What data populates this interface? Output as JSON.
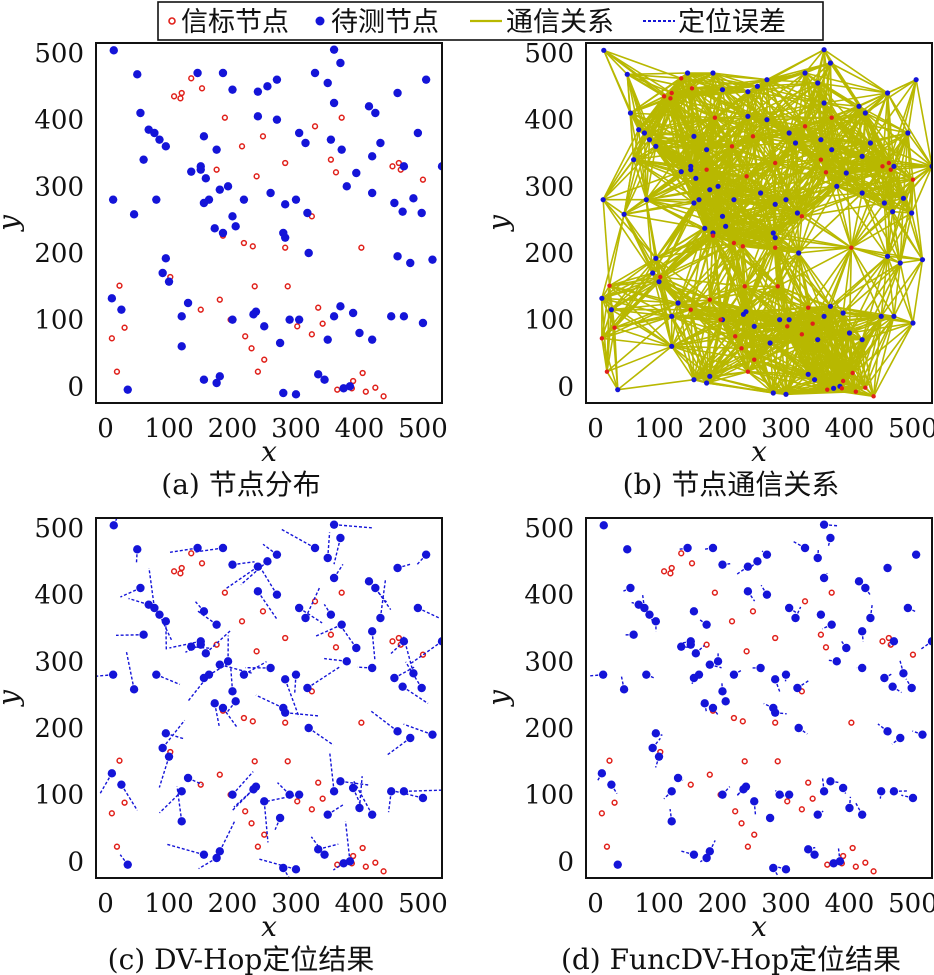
{
  "legend": {
    "entries": [
      {
        "label": "信标节点",
        "kind": "beacon"
      },
      {
        "label": "待测节点",
        "kind": "unknown"
      },
      {
        "label": "通信关系",
        "kind": "link"
      },
      {
        "label": "定位误差",
        "kind": "error"
      }
    ],
    "placement": "top-center"
  },
  "colors": {
    "beacon": "#e0201a",
    "unknown": "#1414d8",
    "link": "#b8b800",
    "error": "#1414d8",
    "frame": "#111111"
  },
  "chart_data": [
    {
      "panel": "a",
      "type": "scatter",
      "caption": "(a) 节点分布",
      "xlabel": "x",
      "ylabel": "y",
      "xlim": [
        -15,
        530
      ],
      "ylim": [
        -25,
        515
      ],
      "xticks": [
        0,
        100,
        200,
        300,
        400,
        500
      ],
      "yticks": [
        0,
        100,
        200,
        300,
        400,
        500
      ],
      "beacons": [
        [
          108,
          435
        ],
        [
          135,
          462
        ],
        [
          120,
          440
        ],
        [
          118,
          432
        ],
        [
          152,
          447
        ],
        [
          188,
          403
        ],
        [
          175,
          325
        ],
        [
          215,
          360
        ],
        [
          248,
          375
        ],
        [
          238,
          315
        ],
        [
          283,
          335
        ],
        [
          330,
          390
        ],
        [
          372,
          403
        ],
        [
          355,
          340
        ],
        [
          325,
          255
        ],
        [
          465,
          325
        ],
        [
          462,
          335
        ],
        [
          452,
          330
        ],
        [
          500,
          310
        ],
        [
          363,
          321
        ],
        [
          403,
          208
        ],
        [
          283,
          208
        ],
        [
          232,
          210
        ],
        [
          218,
          215
        ],
        [
          185,
          226
        ],
        [
          302,
          90
        ],
        [
          287,
          150
        ],
        [
          335,
          118
        ],
        [
          342,
          94
        ],
        [
          325,
          78
        ],
        [
          235,
          150
        ],
        [
          230,
          57
        ],
        [
          250,
          40
        ],
        [
          240,
          22
        ],
        [
          220,
          75
        ],
        [
          197,
          100
        ],
        [
          150,
          115
        ],
        [
          180,
          130
        ],
        [
          102,
          164
        ],
        [
          22,
          151
        ],
        [
          30,
          88
        ],
        [
          10,
          72
        ],
        [
          18,
          22
        ],
        [
          390,
          8
        ],
        [
          405,
          20
        ],
        [
          365,
          -5
        ],
        [
          388,
          -3
        ],
        [
          425,
          -2
        ],
        [
          410,
          -8
        ],
        [
          438,
          -15
        ]
      ],
      "unknowns": [
        [
          13,
          504
        ],
        [
          50,
          468
        ],
        [
          55,
          410
        ],
        [
          68,
          385
        ],
        [
          77,
          380
        ],
        [
          85,
          370
        ],
        [
          95,
          360
        ],
        [
          60,
          340
        ],
        [
          145,
          470
        ],
        [
          185,
          470
        ],
        [
          200,
          445
        ],
        [
          240,
          442
        ],
        [
          255,
          450
        ],
        [
          270,
          460
        ],
        [
          240,
          405
        ],
        [
          270,
          400
        ],
        [
          330,
          470
        ],
        [
          350,
          455
        ],
        [
          360,
          505
        ],
        [
          370,
          485
        ],
        [
          415,
          420
        ],
        [
          425,
          410
        ],
        [
          460,
          440
        ],
        [
          505,
          460
        ],
        [
          492,
          380
        ],
        [
          433,
          365
        ],
        [
          420,
          345
        ],
        [
          360,
          425
        ],
        [
          305,
          380
        ],
        [
          315,
          365
        ],
        [
          355,
          370
        ],
        [
          372,
          355
        ],
        [
          155,
          375
        ],
        [
          175,
          355
        ],
        [
          150,
          325
        ],
        [
          158,
          312
        ],
        [
          163,
          280
        ],
        [
          180,
          295
        ],
        [
          193,
          300
        ],
        [
          200,
          255
        ],
        [
          172,
          237
        ],
        [
          185,
          230
        ],
        [
          205,
          240
        ],
        [
          218,
          280
        ],
        [
          260,
          290
        ],
        [
          283,
          273
        ],
        [
          300,
          280
        ],
        [
          318,
          260
        ],
        [
          280,
          230
        ],
        [
          283,
          223
        ],
        [
          320,
          200
        ],
        [
          380,
          300
        ],
        [
          395,
          320
        ],
        [
          420,
          290
        ],
        [
          455,
          275
        ],
        [
          468,
          262
        ],
        [
          485,
          282
        ],
        [
          498,
          260
        ],
        [
          470,
          330
        ],
        [
          530,
          330
        ],
        [
          12,
          280
        ],
        [
          45,
          258
        ],
        [
          80,
          280
        ],
        [
          95,
          192
        ],
        [
          90,
          170
        ],
        [
          100,
          157
        ],
        [
          155,
          275
        ],
        [
          135,
          322
        ],
        [
          150,
          330
        ],
        [
          460,
          195
        ],
        [
          480,
          185
        ],
        [
          515,
          190
        ],
        [
          500,
          95
        ],
        [
          470,
          105
        ],
        [
          450,
          105
        ],
        [
          420,
          70
        ],
        [
          400,
          80
        ],
        [
          390,
          110
        ],
        [
          370,
          120
        ],
        [
          360,
          105
        ],
        [
          350,
          70
        ],
        [
          305,
          100
        ],
        [
          290,
          100
        ],
        [
          275,
          65
        ],
        [
          250,
          90
        ],
        [
          237,
          112
        ],
        [
          233,
          108
        ],
        [
          200,
          100
        ],
        [
          155,
          10
        ],
        [
          175,
          5
        ],
        [
          180,
          15
        ],
        [
          120,
          60
        ],
        [
          130,
          125
        ],
        [
          120,
          105
        ],
        [
          10,
          132
        ],
        [
          25,
          115
        ],
        [
          35,
          -5
        ],
        [
          280,
          -10
        ],
        [
          300,
          -12
        ],
        [
          385,
          0
        ],
        [
          375,
          -3
        ],
        [
          335,
          18
        ],
        [
          345,
          10
        ]
      ]
    },
    {
      "panel": "b",
      "type": "network",
      "caption": "(b) 节点通信关系",
      "xlabel": "x",
      "ylabel": "y",
      "xlim": [
        -15,
        530
      ],
      "ylim": [
        -25,
        515
      ],
      "xticks": [
        0,
        100,
        200,
        300,
        400,
        500
      ],
      "yticks": [
        0,
        100,
        200,
        300,
        400,
        500
      ],
      "comm_range": 135
    },
    {
      "panel": "c",
      "type": "scatter",
      "caption": "(c) DV-Hop定位结果",
      "xlabel": "x",
      "ylabel": "y",
      "xlim": [
        -15,
        530
      ],
      "ylim": [
        -25,
        515
      ],
      "xticks": [
        0,
        100,
        200,
        300,
        400,
        500
      ],
      "yticks": [
        0,
        100,
        200,
        300,
        400,
        500
      ],
      "error_scale": 1.0
    },
    {
      "panel": "d",
      "type": "scatter",
      "caption": "(d) FuncDV-Hop定位结果",
      "xlabel": "x",
      "ylabel": "y",
      "xlim": [
        -15,
        530
      ],
      "ylim": [
        -25,
        515
      ],
      "xticks": [
        0,
        100,
        200,
        300,
        400,
        500
      ],
      "yticks": [
        0,
        100,
        200,
        300,
        400,
        500
      ],
      "error_scale": 0.35
    }
  ]
}
